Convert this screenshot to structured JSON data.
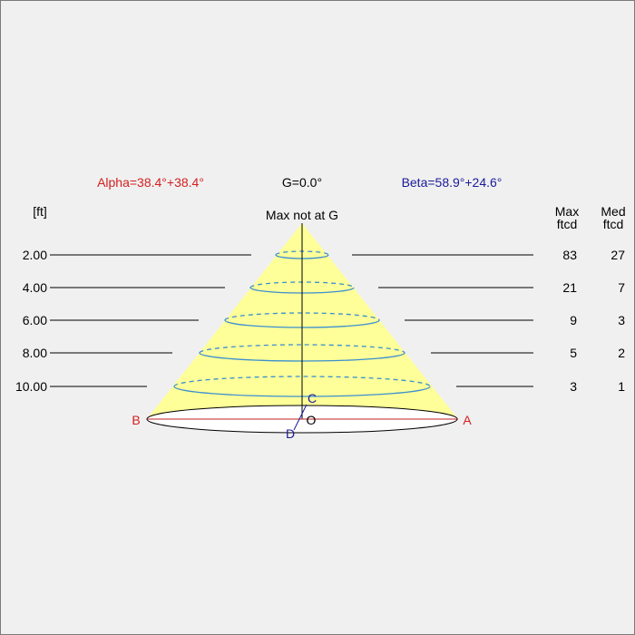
{
  "header": {
    "alpha": "Alpha=38.4°+38.4°",
    "gamma": "G=0.0°",
    "beta": "Beta=58.9°+24.6°"
  },
  "columns": {
    "unit": "[ft]",
    "max_line1": "Max",
    "max_line2": "ftcd",
    "med_line1": "Med",
    "med_line2": "ftcd"
  },
  "apex_label": "Max not at G",
  "rows": [
    {
      "height": "2.00",
      "max": "83",
      "med": "27"
    },
    {
      "height": "4.00",
      "max": "21",
      "med": "7"
    },
    {
      "height": "6.00",
      "max": "9",
      "med": "3"
    },
    {
      "height": "8.00",
      "max": "5",
      "med": "2"
    },
    {
      "height": "10.00",
      "max": "3",
      "med": "1"
    }
  ],
  "points": {
    "a": "A",
    "b": "B",
    "c": "C",
    "d": "D",
    "o": "O"
  },
  "colors": {
    "alpha": "#d42020",
    "beta": "#1a1a9a",
    "cone_fill": "#ffff99",
    "contour": "#3a8fd0",
    "axis_red": "#c02020"
  }
}
